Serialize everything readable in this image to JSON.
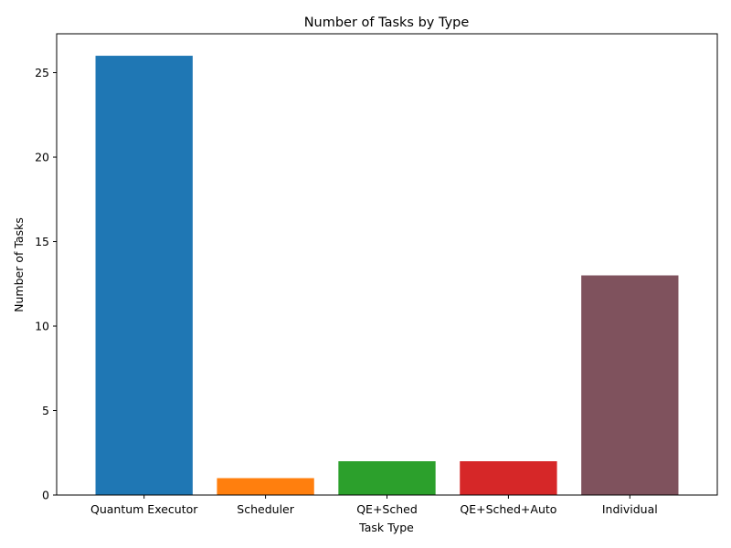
{
  "chart_data": {
    "type": "bar",
    "title": "Number of Tasks by Type",
    "xlabel": "Task Type",
    "ylabel": "Number of Tasks",
    "categories": [
      "Quantum Executor",
      "Scheduler",
      "QE+Sched",
      "QE+Sched+Auto",
      "Individual"
    ],
    "values": [
      26,
      1,
      2,
      2,
      13
    ],
    "colors": [
      "#1f77b4",
      "#ff7f0e",
      "#2ca02c",
      "#d62728",
      "#7f525d"
    ],
    "ylim": [
      0,
      27.3
    ],
    "yticks": [
      0,
      5,
      10,
      15,
      20,
      25
    ],
    "ytick_labels": [
      "0",
      "5",
      "10",
      "15",
      "20",
      "25"
    ],
    "grid": false,
    "legend": "none"
  }
}
